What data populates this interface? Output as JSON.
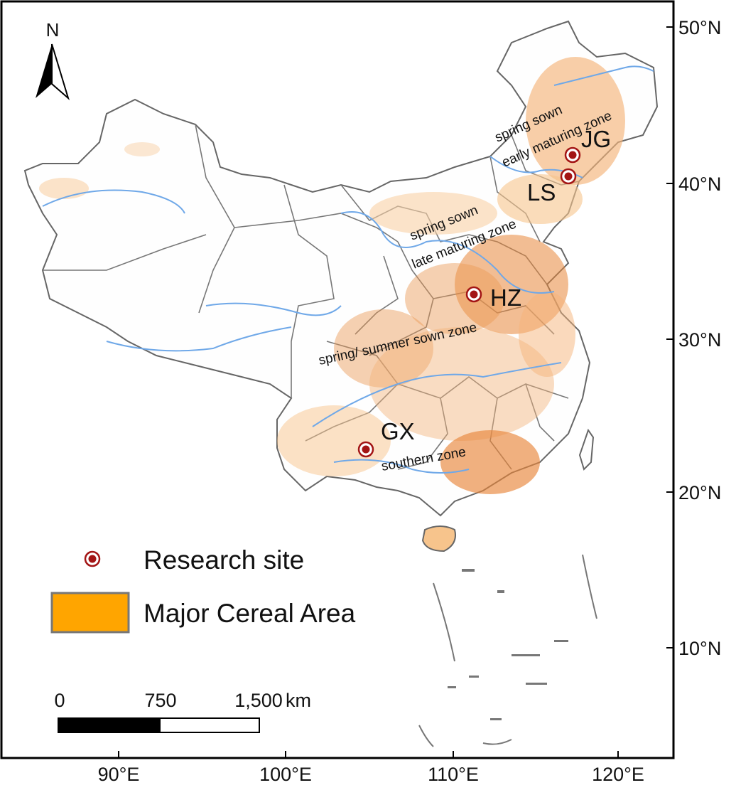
{
  "map": {
    "north_label": "N",
    "lat_ticks": [
      "50°N",
      "40°N",
      "30°N",
      "20°N",
      "10°N"
    ],
    "lon_ticks": [
      "90°E",
      "100°E",
      "110°E",
      "120°E"
    ]
  },
  "zones": {
    "z1_line1": "spring sown",
    "z1_line2": "early maturing zone",
    "z2_line1": "spring sown",
    "z2_line2": "late maturing zone",
    "z3": "spring/ summer sown zone",
    "z4": "southern zone"
  },
  "sites": [
    {
      "code": "JG"
    },
    {
      "code": "LS"
    },
    {
      "code": "HZ"
    },
    {
      "code": "GX"
    }
  ],
  "legend": {
    "research_site": "Research site",
    "major_cereal_area": "Major Cereal Area"
  },
  "scale_bar": {
    "labels": [
      "0",
      "750",
      "1,500"
    ],
    "unit": "km"
  },
  "colors": {
    "cereal_area": "#f5a623",
    "cereal_dense": "#e8863a",
    "site_marker": "#a31515",
    "river": "#6fa8e8",
    "boundary": "#666666"
  }
}
